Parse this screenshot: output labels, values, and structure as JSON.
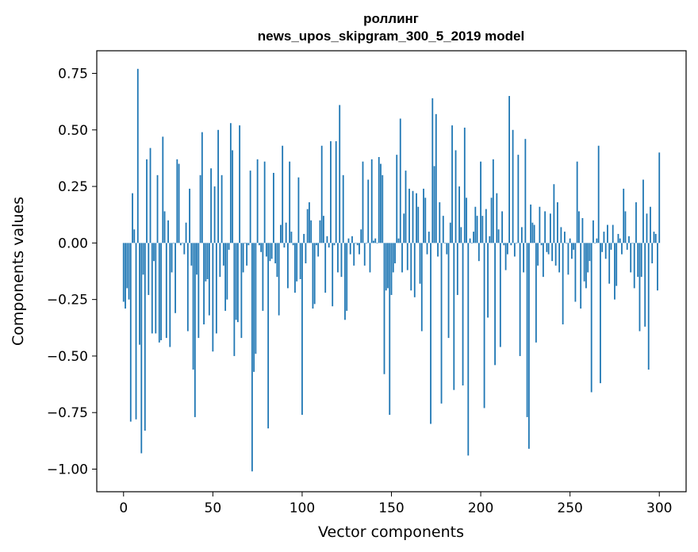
{
  "chart_data": {
    "type": "bar",
    "title_line1": "роллинг",
    "title_line2": "news_upos_skipgram_300_5_2019 model",
    "xlabel": "Vector components",
    "ylabel": "Components values",
    "xlim": [
      -15,
      315
    ],
    "ylim": [
      -1.1,
      0.85
    ],
    "xticks": [
      0,
      50,
      100,
      150,
      200,
      250,
      300
    ],
    "xtick_labels": [
      "0",
      "50",
      "100",
      "150",
      "200",
      "250",
      "300"
    ],
    "yticks": [
      0.75,
      0.5,
      0.25,
      0.0,
      -0.25,
      -0.5,
      -0.75,
      -1.0
    ],
    "ytick_labels": [
      "0.75",
      "0.50",
      "0.25",
      "0.00",
      "−0.25",
      "−0.50",
      "−0.75",
      "−1.00"
    ],
    "bar_color": "#1f77b4",
    "values": [
      -0.26,
      -0.29,
      -0.2,
      -0.25,
      -0.79,
      0.22,
      0.06,
      -0.78,
      0.77,
      -0.45,
      -0.93,
      -0.14,
      -0.83,
      0.37,
      -0.23,
      0.42,
      -0.4,
      -0.08,
      -0.4,
      0.3,
      -0.44,
      -0.43,
      0.47,
      0.14,
      -0.42,
      0.1,
      -0.46,
      -0.13,
      0.0,
      -0.31,
      0.37,
      0.35,
      -0.01,
      0.0,
      -0.05,
      0.09,
      -0.39,
      0.24,
      -0.1,
      -0.56,
      -0.77,
      -0.14,
      -0.42,
      0.3,
      0.49,
      -0.36,
      -0.17,
      -0.16,
      -0.32,
      0.33,
      -0.48,
      0.25,
      -0.4,
      0.5,
      -0.15,
      0.3,
      -0.1,
      -0.3,
      -0.25,
      -0.03,
      0.53,
      0.41,
      -0.5,
      -0.34,
      -0.35,
      0.52,
      -0.42,
      -0.13,
      0.0,
      -0.1,
      -0.01,
      0.32,
      -1.01,
      -0.57,
      -0.49,
      0.37,
      -0.01,
      -0.04,
      -0.3,
      0.36,
      -0.06,
      -0.82,
      -0.08,
      -0.07,
      0.31,
      -0.09,
      -0.15,
      -0.32,
      0.08,
      0.43,
      -0.02,
      0.09,
      -0.2,
      0.36,
      0.05,
      -0.01,
      -0.22,
      -0.17,
      0.29,
      -0.16,
      -0.76,
      0.04,
      -0.09,
      0.15,
      0.18,
      0.1,
      -0.29,
      -0.27,
      -0.01,
      -0.06,
      0.1,
      0.43,
      0.12,
      -0.22,
      0.03,
      -0.02,
      0.45,
      -0.28,
      -0.01,
      0.45,
      -0.13,
      0.61,
      -0.15,
      0.3,
      -0.34,
      -0.3,
      0.02,
      -0.05,
      0.03,
      -0.1,
      0.0,
      -0.01,
      -0.05,
      0.06,
      0.36,
      -0.1,
      0.0,
      0.28,
      -0.13,
      0.37,
      0.01,
      0.02,
      0.0,
      0.38,
      0.35,
      0.3,
      -0.58,
      -0.21,
      -0.2,
      -0.76,
      -0.23,
      -0.13,
      -0.09,
      0.39,
      0.02,
      0.55,
      -0.13,
      0.13,
      0.32,
      -0.12,
      0.24,
      -0.21,
      0.23,
      -0.24,
      0.22,
      0.16,
      -0.18,
      -0.39,
      0.24,
      0.2,
      -0.05,
      0.05,
      -0.8,
      0.64,
      0.34,
      0.57,
      -0.06,
      0.18,
      -0.71,
      0.12,
      0.0,
      -0.05,
      -0.42,
      0.09,
      0.52,
      -0.65,
      0.41,
      -0.23,
      0.25,
      0.07,
      -0.63,
      0.51,
      0.2,
      -0.94,
      0.02,
      0.0,
      0.05,
      0.16,
      0.12,
      -0.08,
      0.36,
      0.12,
      -0.73,
      0.15,
      -0.33,
      0.03,
      0.2,
      0.37,
      -0.54,
      0.22,
      0.06,
      -0.46,
      0.14,
      -0.01,
      -0.12,
      -0.05,
      0.65,
      -0.01,
      0.5,
      -0.06,
      0.0,
      0.39,
      -0.5,
      0.07,
      -0.13,
      0.46,
      -0.77,
      -0.91,
      0.17,
      0.09,
      0.08,
      -0.44,
      -0.1,
      0.16,
      -0.01,
      -0.15,
      0.14,
      -0.04,
      -0.05,
      0.13,
      -0.08,
      0.26,
      -0.1,
      0.18,
      -0.13,
      0.07,
      -0.36,
      0.05,
      0.0,
      -0.14,
      0.02,
      -0.07,
      -0.03,
      -0.26,
      0.36,
      0.14,
      -0.29,
      0.11,
      -0.17,
      -0.2,
      -0.13,
      -0.08,
      -0.66,
      0.1,
      0.0,
      0.02,
      0.43,
      -0.62,
      -0.04,
      0.05,
      -0.07,
      0.08,
      -0.18,
      -0.03,
      0.08,
      -0.25,
      -0.19,
      0.04,
      0.02,
      -0.05,
      0.24,
      0.14,
      -0.03,
      0.03,
      -0.13,
      0.0,
      -0.2,
      0.18,
      -0.15,
      -0.39,
      -0.15,
      0.28,
      -0.37,
      0.13,
      -0.56,
      0.16,
      -0.09,
      0.05,
      0.04,
      -0.21,
      0.4
    ]
  }
}
